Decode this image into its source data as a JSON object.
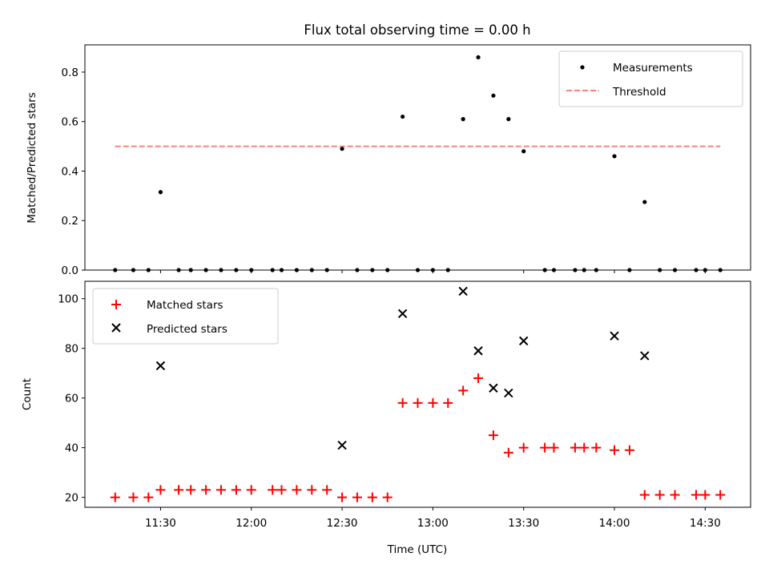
{
  "chart_data": [
    {
      "type": "scatter",
      "title": "Flux total observing time = 0.00 h",
      "xlabel": "",
      "ylabel": "Matched/Predicted stars",
      "ylim": [
        0,
        0.91
      ],
      "yticks": [
        0.0,
        0.2,
        0.4,
        0.6,
        0.8
      ],
      "ytick_labels": [
        "0.0",
        "0.2",
        "0.4",
        "0.6",
        "0.8"
      ],
      "legend_position": "top-right",
      "series": [
        {
          "name": "Measurements",
          "style": "dot",
          "color": "#000000",
          "points": [
            [
              "11:15",
              0
            ],
            [
              "11:21",
              0
            ],
            [
              "11:26",
              0
            ],
            [
              "11:30",
              0.315
            ],
            [
              "11:36",
              0
            ],
            [
              "11:40",
              0
            ],
            [
              "11:45",
              0
            ],
            [
              "11:50",
              0
            ],
            [
              "11:55",
              0
            ],
            [
              "12:00",
              0
            ],
            [
              "12:07",
              0
            ],
            [
              "12:10",
              0
            ],
            [
              "12:15",
              0
            ],
            [
              "12:20",
              0
            ],
            [
              "12:25",
              0
            ],
            [
              "12:30",
              0.49
            ],
            [
              "12:35",
              0
            ],
            [
              "12:40",
              0
            ],
            [
              "12:45",
              0
            ],
            [
              "12:50",
              0.62
            ],
            [
              "12:55",
              0
            ],
            [
              "13:00",
              0
            ],
            [
              "13:05",
              0
            ],
            [
              "13:10",
              0.61
            ],
            [
              "13:15",
              0.86
            ],
            [
              "13:20",
              0.705
            ],
            [
              "13:25",
              0.61
            ],
            [
              "13:30",
              0.48
            ],
            [
              "13:37",
              0
            ],
            [
              "13:40",
              0
            ],
            [
              "13:47",
              0
            ],
            [
              "13:50",
              0
            ],
            [
              "13:54",
              0
            ],
            [
              "14:00",
              0.46
            ],
            [
              "14:05",
              0
            ],
            [
              "14:10",
              0.275
            ],
            [
              "14:15",
              0
            ],
            [
              "14:20",
              0
            ],
            [
              "14:27",
              0
            ],
            [
              "14:30",
              0
            ],
            [
              "14:35",
              0
            ]
          ]
        },
        {
          "name": "Threshold",
          "style": "dashed-line",
          "color": "#ff7f7f",
          "points": [
            [
              "11:15",
              0.5
            ],
            [
              "14:35",
              0.5
            ]
          ]
        }
      ]
    },
    {
      "type": "scatter",
      "title": "",
      "xlabel": "Time (UTC)",
      "ylabel": "Count",
      "ylim": [
        16,
        107
      ],
      "yticks": [
        20,
        40,
        60,
        80,
        100
      ],
      "ytick_labels": [
        "20",
        "40",
        "60",
        "80",
        "100"
      ],
      "xlim": [
        "11:05",
        "14:45"
      ],
      "xticks": [
        "11:30",
        "12:00",
        "12:30",
        "13:00",
        "13:30",
        "14:00",
        "14:30"
      ],
      "legend_position": "top-left",
      "series": [
        {
          "name": "Matched stars",
          "marker": "plus",
          "color": "#ff0000",
          "points": [
            [
              "11:15",
              20
            ],
            [
              "11:21",
              20
            ],
            [
              "11:26",
              20
            ],
            [
              "11:30",
              23
            ],
            [
              "11:36",
              23
            ],
            [
              "11:40",
              23
            ],
            [
              "11:45",
              23
            ],
            [
              "11:50",
              23
            ],
            [
              "11:55",
              23
            ],
            [
              "12:00",
              23
            ],
            [
              "12:07",
              23
            ],
            [
              "12:10",
              23
            ],
            [
              "12:15",
              23
            ],
            [
              "12:20",
              23
            ],
            [
              "12:25",
              23
            ],
            [
              "12:30",
              20
            ],
            [
              "12:35",
              20
            ],
            [
              "12:40",
              20
            ],
            [
              "12:45",
              20
            ],
            [
              "12:50",
              58
            ],
            [
              "12:55",
              58
            ],
            [
              "13:00",
              58
            ],
            [
              "13:05",
              58
            ],
            [
              "13:10",
              63
            ],
            [
              "13:15",
              68
            ],
            [
              "13:20",
              45
            ],
            [
              "13:25",
              38
            ],
            [
              "13:30",
              40
            ],
            [
              "13:37",
              40
            ],
            [
              "13:40",
              40
            ],
            [
              "13:47",
              40
            ],
            [
              "13:50",
              40
            ],
            [
              "13:54",
              40
            ],
            [
              "14:00",
              39
            ],
            [
              "14:05",
              39
            ],
            [
              "14:10",
              21
            ],
            [
              "14:15",
              21
            ],
            [
              "14:20",
              21
            ],
            [
              "14:27",
              21
            ],
            [
              "14:30",
              21
            ],
            [
              "14:35",
              21
            ]
          ]
        },
        {
          "name": "Predicted stars",
          "marker": "x",
          "color": "#000000",
          "points": [
            [
              "11:30",
              73
            ],
            [
              "12:30",
              41
            ],
            [
              "12:50",
              94
            ],
            [
              "13:10",
              103
            ],
            [
              "13:15",
              79
            ],
            [
              "13:20",
              64
            ],
            [
              "13:25",
              62
            ],
            [
              "13:30",
              83
            ],
            [
              "14:00",
              85
            ],
            [
              "14:10",
              77
            ]
          ]
        }
      ]
    }
  ]
}
